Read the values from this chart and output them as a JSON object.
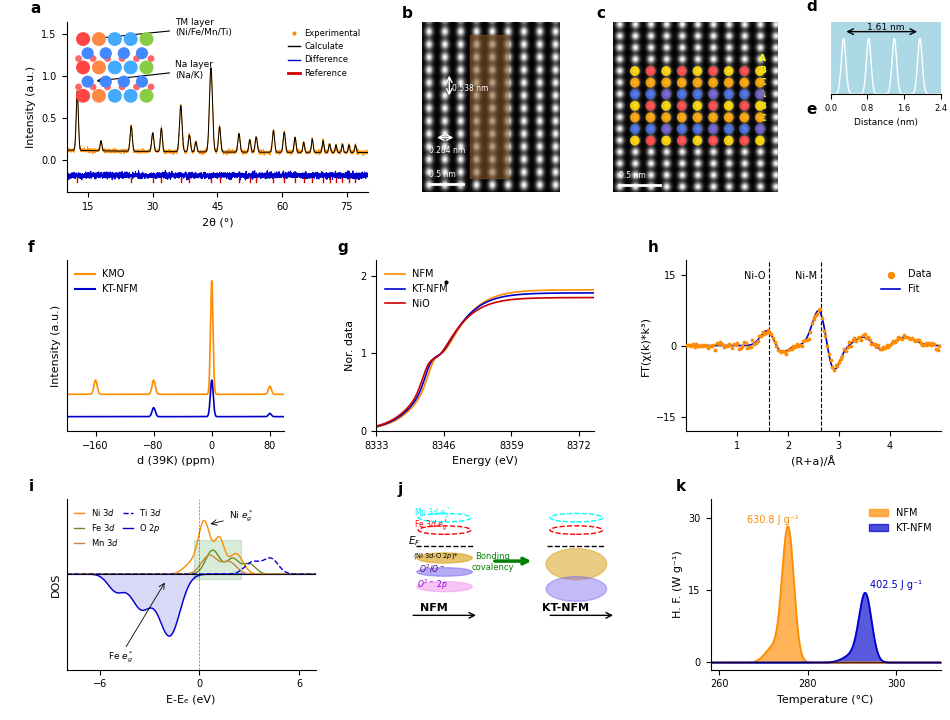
{
  "panel_labels": [
    "a",
    "b",
    "c",
    "d",
    "e",
    "f",
    "g",
    "h",
    "i",
    "j",
    "k"
  ],
  "panel_a": {
    "xlabel": "2θ (°)",
    "ylabel": "Intensity (a.u.)",
    "exp_color": "#FF8C00",
    "calc_color": "#000000",
    "diff_color": "#0000CC",
    "ref_color": "#CC0000",
    "ref_peaks": [
      12.5,
      25.0,
      30.0,
      32.0,
      36.5,
      38.5,
      43.5,
      45.5,
      50.0,
      52.5,
      54.0,
      58.0,
      60.5,
      63.0,
      65.0,
      67.0,
      69.5,
      71.0,
      72.5,
      74.0,
      75.5,
      77.0
    ]
  },
  "panel_f": {
    "xlabel": "d (39K) (ppm)",
    "ylabel": "Intensity (a.u.)",
    "kmo_color": "#FF8C00",
    "ktnfm_color": "#0000CC"
  },
  "panel_g": {
    "xlabel": "Energy (eV)",
    "ylabel": "Nor. data",
    "nfm_color": "#FF8C00",
    "ktnfm_color": "#0000CC",
    "nio_color": "#CC0000"
  },
  "panel_h": {
    "xlabel": "(R+a)/Å",
    "ylabel": "FT(χ(k)*k³)",
    "data_color": "#FF8C00",
    "fit_color": "#0000CC"
  },
  "panel_i": {
    "xlabel": "E-Eₑ (eV)",
    "ylabel": "DOS"
  },
  "panel_k": {
    "xlabel": "Temperature (°C)",
    "ylabel": "H. F. (W g⁻¹)",
    "nfm_color": "#FF8C00",
    "ktnfm_color": "#0000CD",
    "nfm_label": "630.8 J g⁻¹",
    "ktnfm_label": "402.5 J g⁻¹"
  }
}
